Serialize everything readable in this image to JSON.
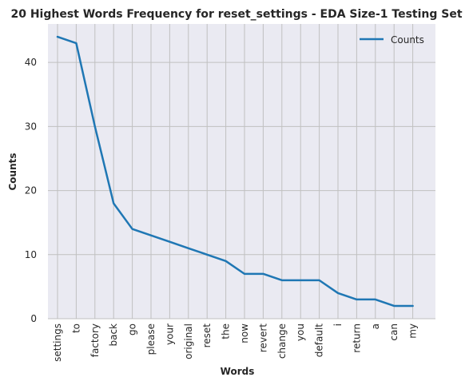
{
  "chart_data": {
    "type": "line",
    "title": "20 Highest Words Frequency for reset_settings - EDA Size-1 Testing Set",
    "xlabel": "Words",
    "ylabel": "Counts",
    "categories": [
      "settings",
      "to",
      "factory",
      "back",
      "go",
      "please",
      "your",
      "original",
      "reset",
      "the",
      "now",
      "revert",
      "change",
      "you",
      "default",
      "i",
      "return",
      "a",
      "can",
      "my"
    ],
    "series": [
      {
        "name": "Counts",
        "values": [
          44,
          43,
          30,
          18,
          14,
          13,
          12,
          11,
          10,
          9,
          7,
          7,
          6,
          6,
          6,
          4,
          3,
          3,
          2,
          2
        ]
      }
    ],
    "ylim": [
      0,
      46
    ],
    "yticks": [
      0,
      10,
      20,
      30,
      40
    ],
    "grid": true,
    "legend_position": "top-right",
    "colors": {
      "line": "#1f77b4",
      "background": "#eaeaf2",
      "grid": "#c0c0c0"
    }
  }
}
